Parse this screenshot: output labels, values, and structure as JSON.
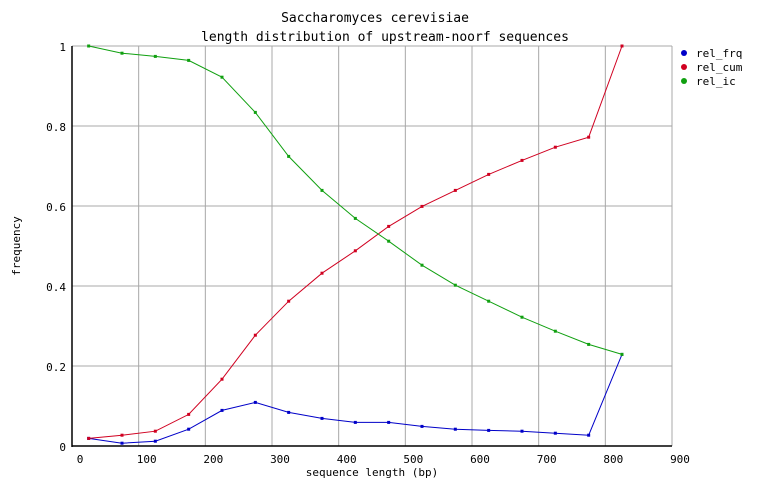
{
  "chart_data": {
    "type": "line",
    "title": "Saccharomyces cerevisiae",
    "subtitle": "length distribution of upstream-noorf sequences",
    "xlabel": "sequence length (bp)",
    "ylabel": "frequency",
    "xlim": [
      0,
      900
    ],
    "ylim": [
      0,
      1
    ],
    "xticks": [
      0,
      100,
      200,
      300,
      400,
      500,
      600,
      700,
      800,
      900
    ],
    "yticks": [
      0,
      0.2,
      0.4,
      0.6,
      0.8,
      1
    ],
    "ytick_labels": [
      "0",
      "0.2",
      "0.4",
      "0.6",
      "0.8",
      "1"
    ],
    "grid": true,
    "legend_position": "right-top",
    "x": [
      25,
      75,
      125,
      175,
      225,
      275,
      325,
      375,
      425,
      475,
      525,
      575,
      625,
      675,
      725,
      775,
      825
    ],
    "series": [
      {
        "name": "rel_frq",
        "color": "#0000c8",
        "values": [
          0.019,
          0.007,
          0.012,
          0.042,
          0.089,
          0.109,
          0.084,
          0.069,
          0.059,
          0.059,
          0.049,
          0.042,
          0.039,
          0.037,
          0.032,
          0.027,
          0.229
        ]
      },
      {
        "name": "rel_cum",
        "color": "#d00020",
        "values": [
          0.019,
          0.027,
          0.037,
          0.079,
          0.167,
          0.277,
          0.362,
          0.432,
          0.488,
          0.549,
          0.599,
          0.639,
          0.679,
          0.714,
          0.747,
          0.772,
          1.0
        ]
      },
      {
        "name": "rel_ic",
        "color": "#10a010",
        "values": [
          1.0,
          0.982,
          0.974,
          0.964,
          0.922,
          0.834,
          0.724,
          0.639,
          0.569,
          0.512,
          0.452,
          0.402,
          0.362,
          0.322,
          0.287,
          0.254,
          0.229
        ]
      }
    ]
  }
}
